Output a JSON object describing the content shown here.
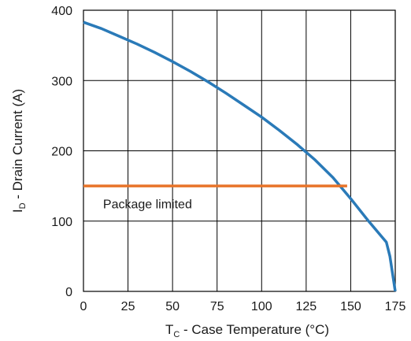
{
  "chart_data": {
    "type": "line",
    "xlabel": {
      "main": "T",
      "sub": "C",
      "rest": " - Case Temperature (°C)"
    },
    "ylabel": {
      "main": "I",
      "sub": "D",
      "rest": " - Drain Current (A)"
    },
    "xlim": [
      0,
      175
    ],
    "ylim": [
      0,
      400
    ],
    "xticks": [
      0,
      25,
      50,
      75,
      100,
      125,
      150,
      175
    ],
    "yticks": [
      0,
      100,
      200,
      300,
      400
    ],
    "grid": true,
    "series": [
      {
        "color": "#2a7ab8",
        "x": [
          0,
          10,
          20,
          30,
          40,
          50,
          60,
          70,
          80,
          90,
          100,
          110,
          120,
          130,
          140,
          150,
          160,
          166,
          170,
          172,
          175
        ],
        "y": [
          383,
          374,
          363,
          352,
          340,
          327,
          313,
          298,
          282,
          265,
          248,
          229,
          209,
          187,
          162,
          132,
          100,
          82,
          70,
          50,
          0
        ]
      },
      {
        "color": "#e8742a",
        "x": [
          0,
          148
        ],
        "y": [
          150,
          150
        ]
      }
    ],
    "annotations": [
      {
        "text": "Package limited",
        "x": 11,
        "y": 125
      }
    ]
  }
}
